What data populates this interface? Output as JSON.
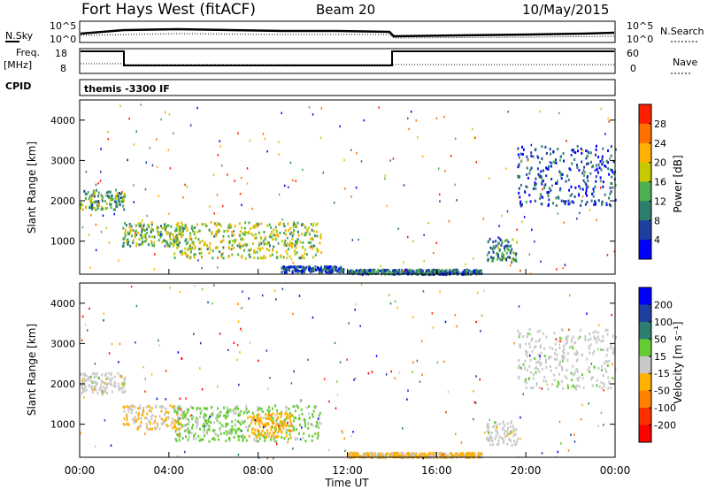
{
  "header": {
    "station": "Fort Hays West (fitACF)",
    "beam": "Beam 20",
    "date": "10/May/2015"
  },
  "summary": {
    "nsky_label": "N.Sky",
    "nsearch_label": "N.Search",
    "noise_ticks_left": [
      "10^5",
      "10^0"
    ],
    "noise_ticks_right": [
      "10^5",
      "10^0"
    ],
    "freq_label": "Freq.",
    "freq_unit": "[MHz]",
    "freq_ticks": [
      "18",
      "8"
    ],
    "nave_label": "Nave",
    "nave_ticks": [
      "60",
      "0"
    ],
    "cpid_label": "CPID",
    "cpid_text": "themis -3300 IF"
  },
  "x_axis": {
    "label": "Time UT",
    "ticks": [
      "00:00",
      "04:00",
      "08:00",
      "12:00",
      "16:00",
      "20:00",
      "00:00"
    ]
  },
  "colors": {
    "power_scale": [
      "#0000ff",
      "#1e3fa0",
      "#2e7d6e",
      "#4caf50",
      "#c8c800",
      "#ffb000",
      "#ff7000",
      "#ff2000"
    ],
    "velocity_scale": [
      "#0000ff",
      "#1e3fa0",
      "#2e7d6e",
      "#66cc33",
      "#c8c8c8",
      "#ffb000",
      "#ff8000",
      "#ff3000",
      "#ff0000"
    ]
  },
  "chart_data": [
    {
      "type": "heatmap",
      "title": "Power",
      "ylabel": "Slant Range [km]",
      "xlabel": "",
      "x_range_hours": [
        0,
        24
      ],
      "ylim": [
        180,
        4500
      ],
      "yticks": [
        "4000",
        "3000",
        "2000",
        "1000"
      ],
      "colorbar_label": "Power [dB]",
      "colorbar_ticks": [
        "28",
        "24",
        "20",
        "16",
        "12",
        "8",
        "4"
      ],
      "colorbar_range": [
        0,
        30
      ],
      "regions": [
        {
          "t": [
            0.0,
            2.0
          ],
          "r": [
            1800,
            2300
          ],
          "level": 12
        },
        {
          "t": [
            1.9,
            4.6
          ],
          "r": [
            900,
            1500
          ],
          "level": 14
        },
        {
          "t": [
            4.2,
            10.8
          ],
          "r": [
            600,
            1500
          ],
          "level": 16
        },
        {
          "t": [
            9.0,
            11.8
          ],
          "r": [
            250,
            400
          ],
          "level": 6
        },
        {
          "t": [
            12.0,
            18.0
          ],
          "r": [
            200,
            320
          ],
          "level": 8
        },
        {
          "t": [
            18.2,
            19.6
          ],
          "r": [
            500,
            1100
          ],
          "level": 10
        },
        {
          "t": [
            19.6,
            24.0
          ],
          "r": [
            1900,
            3400
          ],
          "level": 6
        }
      ]
    },
    {
      "type": "heatmap",
      "title": "Velocity",
      "ylabel": "Slant Range [km]",
      "xlabel": "Time UT",
      "x_range_hours": [
        0,
        24
      ],
      "ylim": [
        180,
        4500
      ],
      "yticks": [
        "4000",
        "3000",
        "2000",
        "1000"
      ],
      "colorbar_label": "Velocity [m s⁻¹]",
      "colorbar_ticks": [
        "200",
        "100",
        "50",
        "15",
        "-15",
        "-50",
        "-100",
        "-200"
      ],
      "colorbar_range": [
        -250,
        250
      ],
      "regions": [
        {
          "t": [
            0.0,
            2.0
          ],
          "r": [
            1800,
            2300
          ],
          "value": 0
        },
        {
          "t": [
            1.9,
            4.6
          ],
          "r": [
            900,
            1500
          ],
          "value": -20
        },
        {
          "t": [
            4.2,
            10.8
          ],
          "r": [
            600,
            1500
          ],
          "value": 40
        },
        {
          "t": [
            7.5,
            9.5
          ],
          "r": [
            700,
            1300
          ],
          "value": -60
        },
        {
          "t": [
            12.0,
            18.0
          ],
          "r": [
            200,
            320
          ],
          "value": -40
        },
        {
          "t": [
            18.2,
            19.6
          ],
          "r": [
            500,
            1100
          ],
          "value": 0
        },
        {
          "t": [
            19.6,
            24.0
          ],
          "r": [
            1900,
            3400
          ],
          "value": 5
        }
      ]
    }
  ]
}
